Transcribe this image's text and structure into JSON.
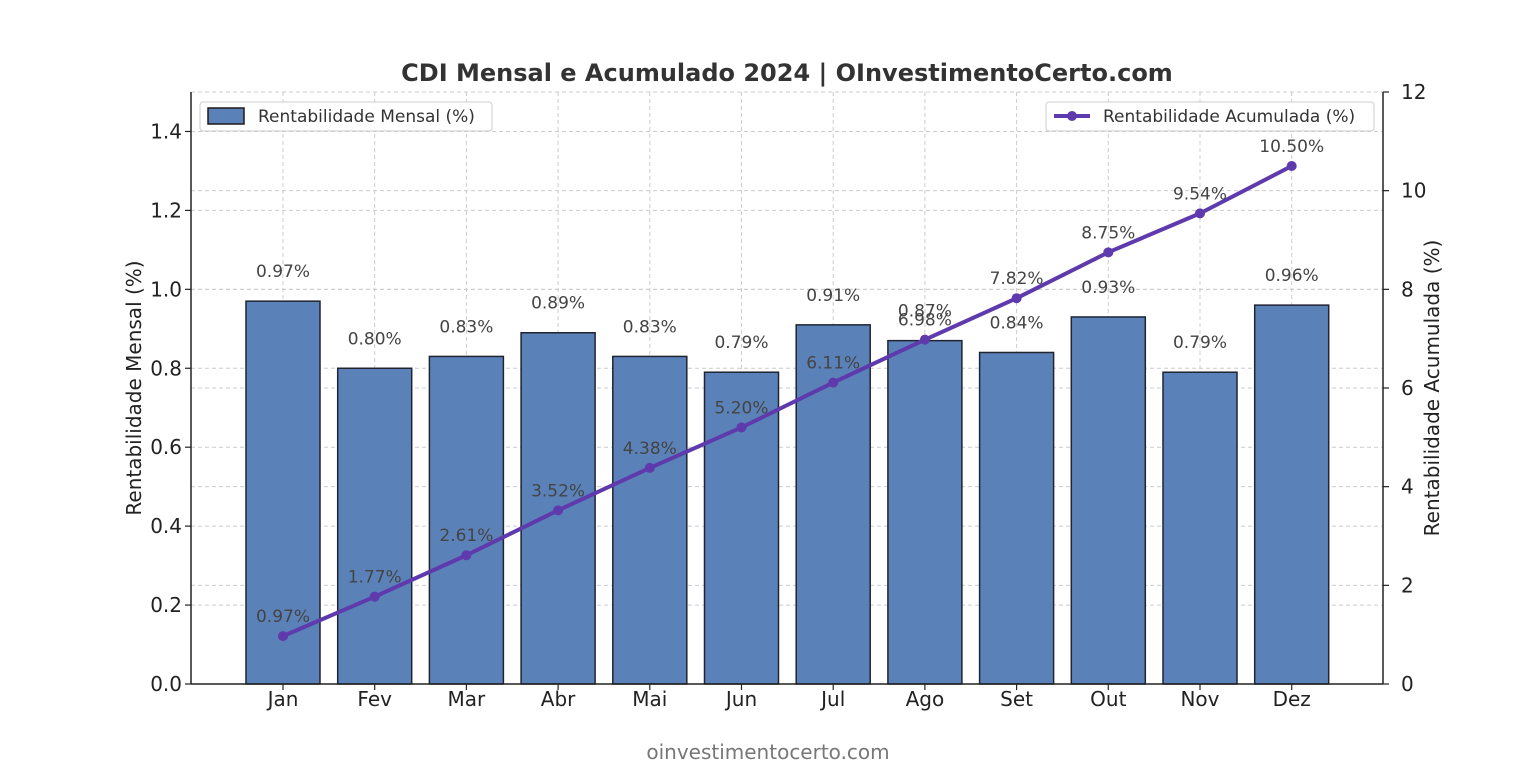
{
  "footer_text": "oinvestimentocerto.com",
  "chart_data": {
    "type": "bar",
    "title": "CDI Mensal e Acumulado 2024 | OInvestimentoCerto.com",
    "categories": [
      "Jan",
      "Fev",
      "Mar",
      "Abr",
      "Mai",
      "Jun",
      "Jul",
      "Ago",
      "Set",
      "Out",
      "Nov",
      "Dez"
    ],
    "ylabel": "Rentabilidade Mensal (%)",
    "ylabel_right": "Rentabilidade Acumulada (%)",
    "ylim": [
      0,
      1.5
    ],
    "ylim_right": [
      0,
      12
    ],
    "yticks": [
      "0.0",
      "0.2",
      "0.4",
      "0.6",
      "0.8",
      "1.0",
      "1.2",
      "1.4"
    ],
    "yticks_right": [
      "0",
      "2",
      "4",
      "6",
      "8",
      "10",
      "12"
    ],
    "grid": true,
    "series": [
      {
        "name": "Rentabilidade Mensal (%)",
        "type": "bar",
        "axis": "left",
        "color": "#5b82b8",
        "legend_position": "top-left",
        "values": [
          0.97,
          0.8,
          0.83,
          0.89,
          0.83,
          0.79,
          0.91,
          0.87,
          0.84,
          0.93,
          0.79,
          0.96
        ],
        "labels": [
          "0.97%",
          "0.80%",
          "0.83%",
          "0.89%",
          "0.83%",
          "0.79%",
          "0.91%",
          "0.87%",
          "0.84%",
          "0.93%",
          "0.79%",
          "0.96%"
        ]
      },
      {
        "name": "Rentabilidade Acumulada (%)",
        "type": "line",
        "axis": "right",
        "color": "#5e3aad",
        "legend_position": "top-right",
        "values": [
          0.97,
          1.77,
          2.61,
          3.52,
          4.38,
          5.2,
          6.11,
          6.98,
          7.82,
          8.75,
          9.54,
          10.5
        ],
        "labels": [
          "0.97%",
          "1.77%",
          "2.61%",
          "3.52%",
          "4.38%",
          "5.20%",
          "6.11%",
          "6.98%",
          "7.82%",
          "8.75%",
          "9.54%",
          "10.50%"
        ]
      }
    ]
  }
}
